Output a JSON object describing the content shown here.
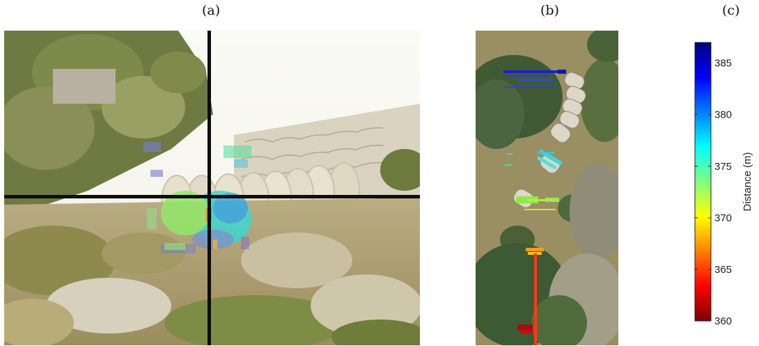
{
  "panels": {
    "a": {
      "label": "(a)"
    },
    "b": {
      "label": "(b)"
    },
    "c": {
      "label": "(c)"
    }
  },
  "chart_data": {
    "type": "heatmap",
    "colorbar": {
      "label": "Distance (m)",
      "range": [
        360,
        387
      ],
      "ticks": [
        360,
        365,
        370,
        375,
        380,
        385
      ],
      "colormap": "jet reversed (red = near, blue = far)"
    },
    "overlays": {
      "a": {
        "description_values": [
          374,
          376,
          378,
          372,
          371
        ]
      },
      "b": {
        "clusters": [
          {
            "name": "top",
            "distance_m": 385
          },
          {
            "name": "upper-middle",
            "distance_m": 376
          },
          {
            "name": "middle",
            "distance_m": 372
          },
          {
            "name": "lower",
            "distance_m": 367
          },
          {
            "name": "bottom",
            "distance_m": 361
          }
        ]
      }
    }
  },
  "colors": {
    "crosshair": "#0d0d0d",
    "ground": "#9a8f62",
    "foliage": "#3f5a35"
  }
}
